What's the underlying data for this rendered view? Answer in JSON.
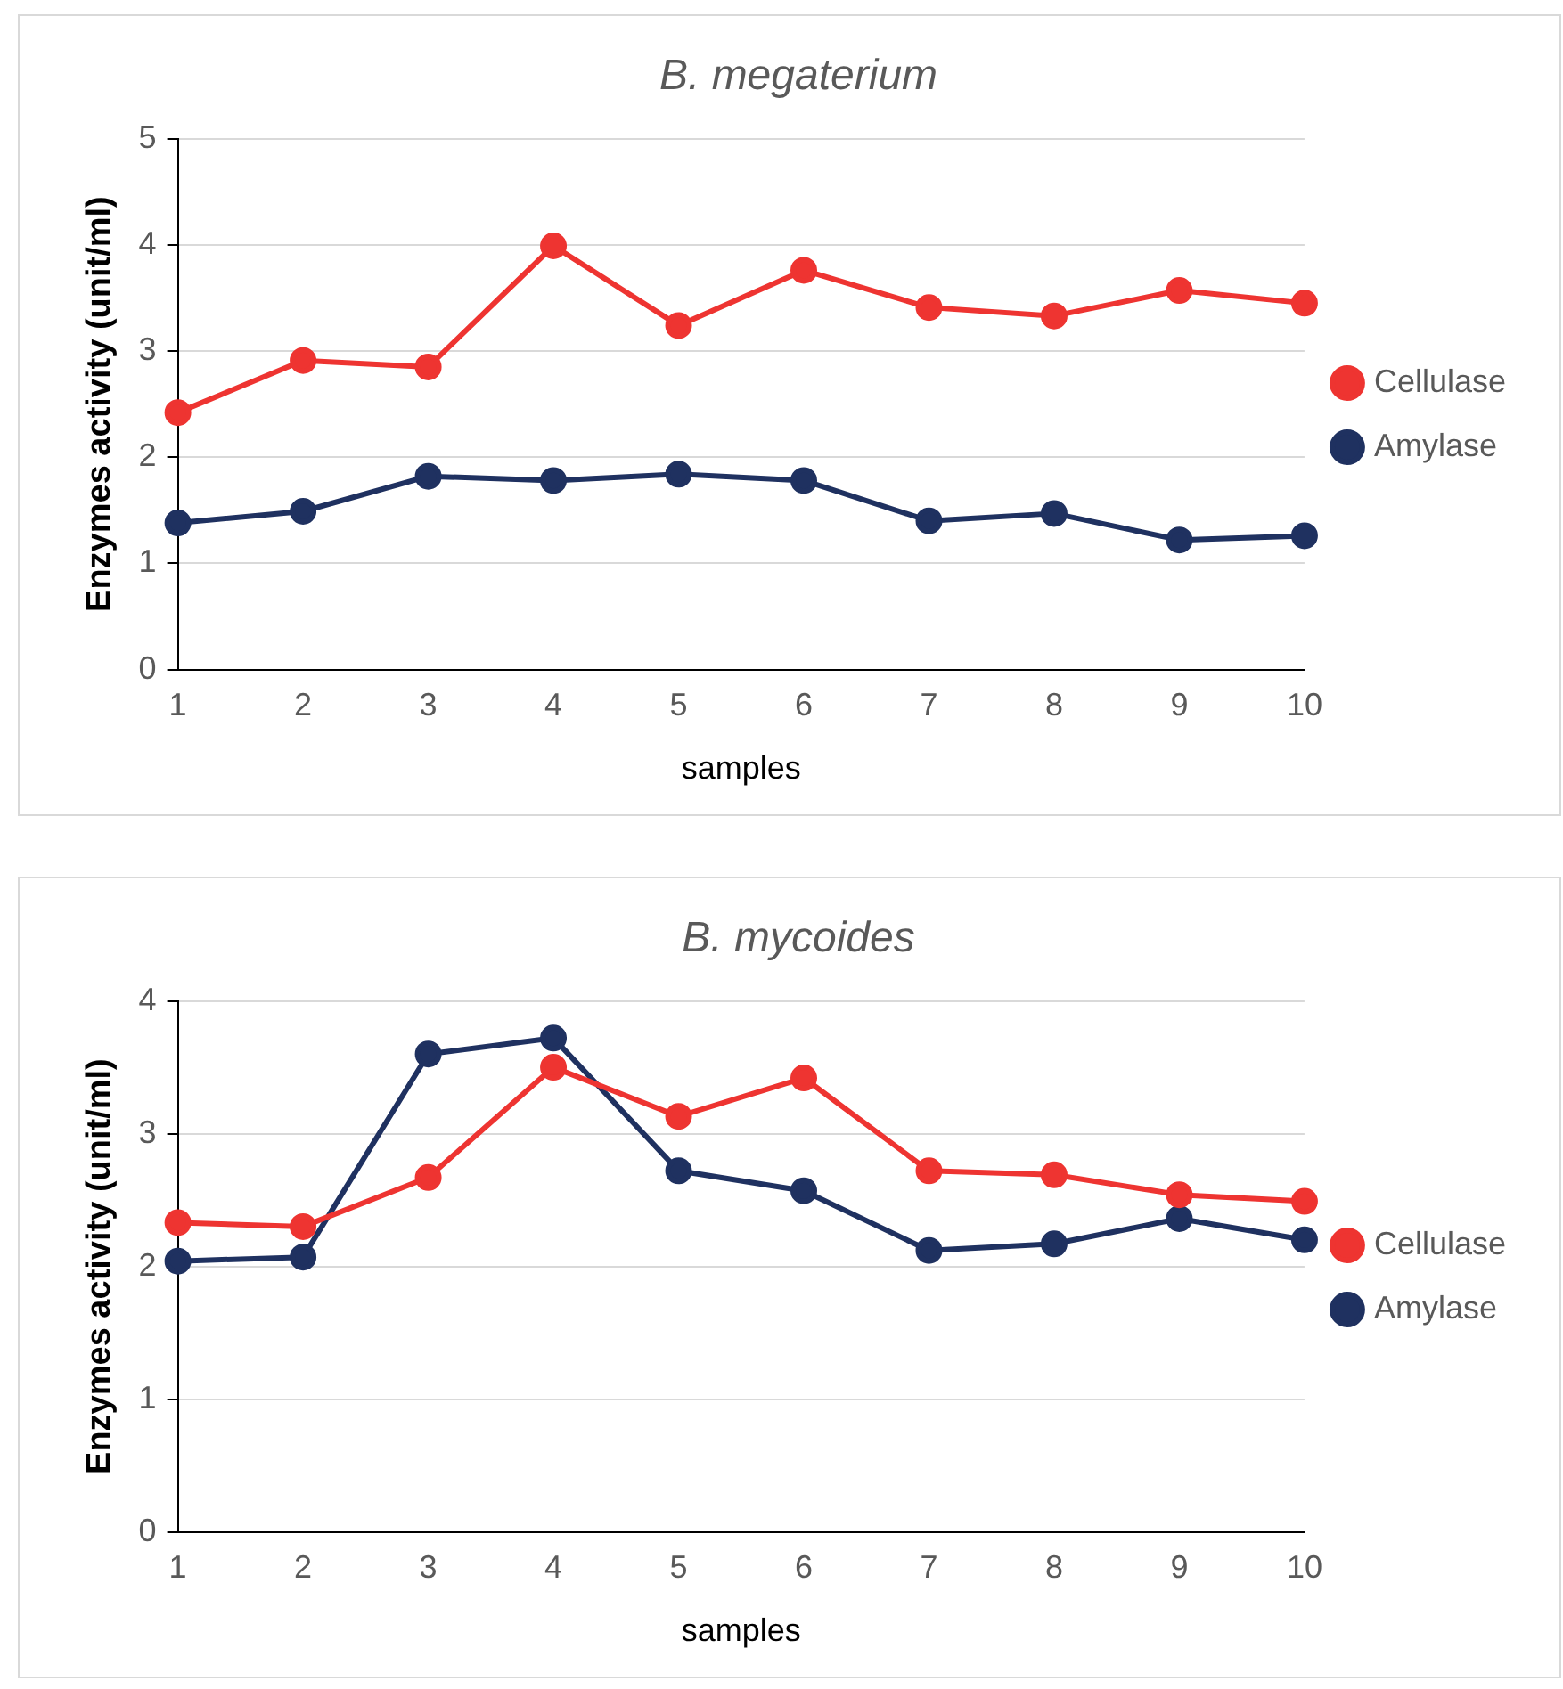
{
  "chart_data": [
    {
      "type": "line",
      "title": "B. megaterium",
      "xlabel": "samples",
      "ylabel": "Enzymes activity (unit/ml)",
      "categories": [
        "1",
        "2",
        "3",
        "4",
        "5",
        "6",
        "7",
        "8",
        "9",
        "10"
      ],
      "ylim": [
        0,
        5
      ],
      "yticks": [
        0,
        1,
        2,
        3,
        4,
        5
      ],
      "grid": "y",
      "legend": "right",
      "marker": "circle",
      "line_style": "solid",
      "series": [
        {
          "name": "Cellulase",
          "color": "#ee3431",
          "values": [
            2.42,
            2.91,
            2.85,
            3.99,
            3.24,
            3.76,
            3.41,
            3.33,
            3.57,
            3.45
          ]
        },
        {
          "name": "Amylase",
          "color": "#1f3160",
          "values": [
            1.38,
            1.49,
            1.82,
            1.78,
            1.84,
            1.78,
            1.4,
            1.47,
            1.22,
            1.26
          ]
        }
      ]
    },
    {
      "type": "line",
      "title": "B. mycoides",
      "xlabel": "samples",
      "ylabel": "Enzymes activity (unit/ml)",
      "categories": [
        "1",
        "2",
        "3",
        "4",
        "5",
        "6",
        "7",
        "8",
        "9",
        "10"
      ],
      "ylim": [
        0,
        4
      ],
      "yticks": [
        0,
        1,
        2,
        3,
        4
      ],
      "grid": "y",
      "legend": "right",
      "marker": "circle",
      "line_style": "solid",
      "series": [
        {
          "name": "Cellulase",
          "color": "#ee3431",
          "values": [
            2.33,
            2.3,
            2.67,
            3.5,
            3.13,
            3.42,
            2.72,
            2.69,
            2.54,
            2.49
          ]
        },
        {
          "name": "Amylase",
          "color": "#1f3160",
          "values": [
            2.04,
            2.07,
            3.6,
            3.72,
            2.72,
            2.57,
            2.12,
            2.17,
            2.36,
            2.2
          ]
        }
      ]
    }
  ]
}
